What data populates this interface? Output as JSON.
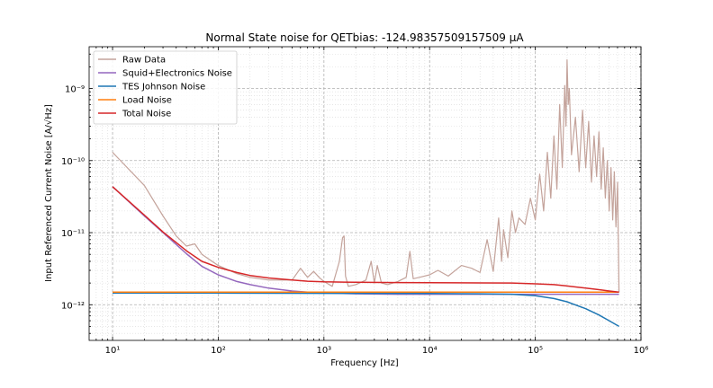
{
  "chart_data": {
    "type": "line",
    "title": "Normal State noise for QETbias: -124.98357509157509 μA",
    "xlabel": "Frequency [Hz]",
    "ylabel": "Input Referenced Current Noise [A/√Hz]",
    "xscale": "log",
    "yscale": "log",
    "xlim": [
      6,
      1000000
    ],
    "ylim": [
      3.2e-13,
      3.8e-09
    ],
    "grid": true,
    "legend_position": "top-left",
    "xticks": [
      {
        "value": 10,
        "label": "10¹"
      },
      {
        "value": 100,
        "label": "10²"
      },
      {
        "value": 1000,
        "label": "10³"
      },
      {
        "value": 10000,
        "label": "10⁴"
      },
      {
        "value": 100000,
        "label": "10⁵"
      },
      {
        "value": 1000000,
        "label": "10⁶"
      }
    ],
    "yticks": [
      {
        "value": 1e-12,
        "label": "10⁻¹²"
      },
      {
        "value": 1e-11,
        "label": "10⁻¹¹"
      },
      {
        "value": 1e-10,
        "label": "10⁻¹⁰"
      },
      {
        "value": 1e-09,
        "label": "10⁻⁹"
      }
    ],
    "series": [
      {
        "name": "Raw Data",
        "color": "#c4a39b",
        "x": [
          10,
          20,
          30,
          40,
          50,
          60,
          70,
          100,
          150,
          200,
          300,
          500,
          600,
          700,
          800,
          900,
          1000,
          1200,
          1400,
          1500,
          1550,
          1600,
          1700,
          2000,
          2500,
          2800,
          3000,
          3200,
          3500,
          4000,
          5000,
          6000,
          6500,
          7000,
          8000,
          10000,
          12000,
          15000,
          20000,
          25000,
          30000,
          35000,
          40000,
          45000,
          48000,
          50000,
          55000,
          60000,
          65000,
          70000,
          80000,
          90000,
          100000,
          110000,
          120000,
          130000,
          140000,
          150000,
          160000,
          170000,
          180000,
          190000,
          195000,
          200000,
          205000,
          210000,
          220000,
          240000,
          260000,
          280000,
          300000,
          320000,
          340000,
          360000,
          380000,
          400000,
          420000,
          440000,
          460000,
          480000,
          500000,
          520000,
          540000,
          560000,
          580000,
          600000,
          620000
        ],
        "y": [
          1.3e-10,
          4.5e-11,
          1.7e-11,
          9e-12,
          6.5e-12,
          7e-12,
          5e-12,
          3.5e-12,
          2.7e-12,
          2.4e-12,
          2.2e-12,
          2.2e-12,
          3.2e-12,
          2.4e-12,
          2.9e-12,
          2.4e-12,
          2.1e-12,
          1.8e-12,
          4e-12,
          8.5e-12,
          9e-12,
          2.5e-12,
          1.8e-12,
          1.9e-12,
          2.2e-12,
          4e-12,
          2e-12,
          3.5e-12,
          2e-12,
          1.9e-12,
          2.1e-12,
          2.4e-12,
          5.5e-12,
          2.3e-12,
          2.4e-12,
          2.6e-12,
          3e-12,
          2.5e-12,
          3.5e-12,
          3.2e-12,
          2.8e-12,
          8e-12,
          2.9e-12,
          1.6e-11,
          4e-12,
          1.1e-11,
          4.5e-12,
          2e-11,
          1e-11,
          1.6e-11,
          1.3e-11,
          3e-11,
          1.5e-11,
          6.5e-11,
          2e-11,
          1.3e-10,
          3e-11,
          2.2e-10,
          4e-11,
          6e-10,
          8e-11,
          1.1e-09,
          3e-10,
          2.5e-09,
          6e-10,
          1e-09,
          1.2e-10,
          4e-10,
          7e-11,
          5e-10,
          8e-11,
          3.5e-10,
          5e-11,
          2.2e-10,
          6e-11,
          2.5e-10,
          4e-11,
          1.5e-10,
          3e-11,
          1e-10,
          2e-11,
          8e-11,
          1.5e-11,
          7e-11,
          1.2e-11,
          5e-11,
          1.5e-12
        ]
      },
      {
        "name": "Squid+Electronics Noise",
        "color": "#9467bd",
        "x": [
          10,
          20,
          30,
          50,
          70,
          100,
          150,
          200,
          300,
          500,
          700,
          1000,
          2000,
          5000,
          10000,
          30000,
          100000,
          300000,
          620000
        ],
        "y": [
          4.35e-11,
          1.7e-11,
          1e-11,
          5.1e-12,
          3.4e-12,
          2.6e-12,
          2.1e-12,
          1.9e-12,
          1.7e-12,
          1.55e-12,
          1.5e-12,
          1.45e-12,
          1.42e-12,
          1.4e-12,
          1.4e-12,
          1.4e-12,
          1.4e-12,
          1.4e-12,
          1.4e-12
        ]
      },
      {
        "name": "TES Johnson Noise",
        "color": "#1f77b4",
        "x": [
          10,
          100,
          1000,
          10000,
          30000,
          60000,
          100000,
          150000,
          200000,
          300000,
          400000,
          500000,
          620000
        ],
        "y": [
          1.45e-12,
          1.45e-12,
          1.44e-12,
          1.43e-12,
          1.42e-12,
          1.4e-12,
          1.33e-12,
          1.22e-12,
          1.1e-12,
          8.8e-13,
          7.2e-13,
          6e-13,
          5e-13
        ]
      },
      {
        "name": "Load Noise",
        "color": "#ff7f0e",
        "x": [
          10,
          100,
          1000,
          10000,
          100000,
          620000
        ],
        "y": [
          1.5e-12,
          1.5e-12,
          1.5e-12,
          1.5e-12,
          1.5e-12,
          1.5e-12
        ]
      },
      {
        "name": "Total Noise",
        "color": "#d62728",
        "x": [
          10,
          20,
          30,
          50,
          70,
          100,
          150,
          200,
          300,
          500,
          700,
          1000,
          2000,
          5000,
          10000,
          30000,
          60000,
          100000,
          150000,
          200000,
          300000,
          400000,
          500000,
          620000
        ],
        "y": [
          4.35e-11,
          1.75e-11,
          1.02e-11,
          5.6e-12,
          4e-12,
          3.3e-12,
          2.8e-12,
          2.55e-12,
          2.35e-12,
          2.2e-12,
          2.12e-12,
          2.08e-12,
          2.05e-12,
          2.03e-12,
          2.02e-12,
          2.01e-12,
          2e-12,
          1.95e-12,
          1.9e-12,
          1.82e-12,
          1.7e-12,
          1.62e-12,
          1.55e-12,
          1.5e-12
        ]
      }
    ]
  }
}
